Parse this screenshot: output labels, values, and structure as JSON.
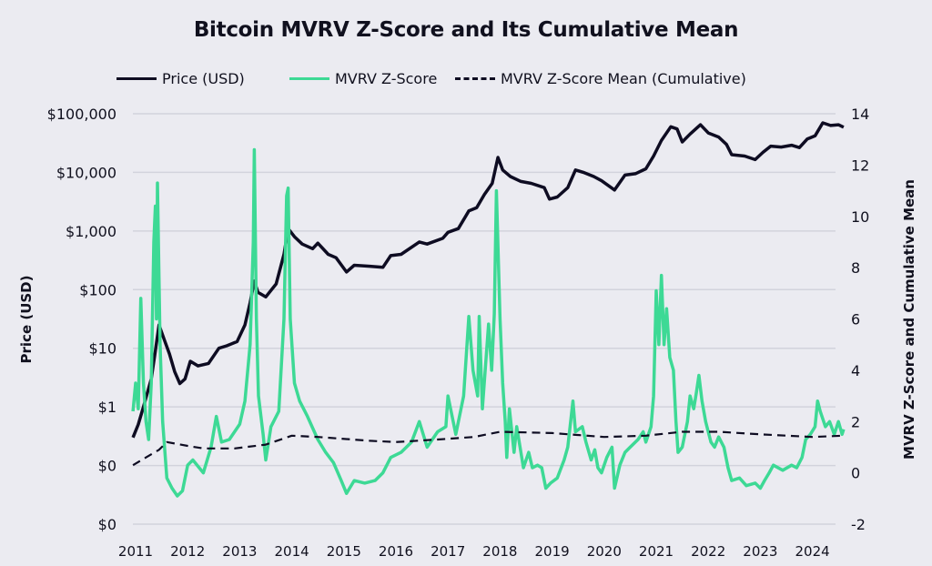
{
  "chart_data": {
    "type": "line",
    "title": "Bitcoin MVRV Z-Score and Its Cumulative Mean",
    "legend_placement": "top",
    "grid": true,
    "x": {
      "ticks": [
        "2011",
        "2012",
        "2013",
        "2014",
        "2015",
        "2016",
        "2017",
        "2018",
        "2019",
        "2020",
        "2021",
        "2022",
        "2023",
        "2024"
      ],
      "range": [
        2010.95,
        2024.6
      ]
    },
    "y_left": {
      "label": "Price (USD)",
      "scale": "log",
      "range": [
        0.01,
        100000
      ],
      "ticks": [
        {
          "v": 100000,
          "t": "$100,000"
        },
        {
          "v": 10000,
          "t": "$10,000"
        },
        {
          "v": 1000,
          "t": "$1,000"
        },
        {
          "v": 100,
          "t": "$100"
        },
        {
          "v": 10,
          "t": "$10"
        },
        {
          "v": 1,
          "t": "$1"
        },
        {
          "v": 0.1,
          "t": "$0"
        },
        {
          "v": 0.01,
          "t": "$0"
        }
      ]
    },
    "y_right": {
      "label": "MVRV Z-Score and Cumulative Mean",
      "range": [
        -2,
        14
      ],
      "ticks": [
        "14",
        "12",
        "10",
        "8",
        "6",
        "4",
        "2",
        "0",
        "-2"
      ]
    },
    "series": [
      {
        "name": "Price (USD)",
        "axis": "left",
        "color": "#0e0c22",
        "style": "solid",
        "points": [
          [
            2010.95,
            0.3
          ],
          [
            2011.05,
            0.5
          ],
          [
            2011.15,
            1
          ],
          [
            2011.3,
            3
          ],
          [
            2011.38,
            9
          ],
          [
            2011.45,
            25
          ],
          [
            2011.55,
            14
          ],
          [
            2011.65,
            8
          ],
          [
            2011.75,
            4
          ],
          [
            2011.85,
            2.5
          ],
          [
            2011.95,
            3
          ],
          [
            2012.05,
            6
          ],
          [
            2012.2,
            5
          ],
          [
            2012.4,
            5.5
          ],
          [
            2012.6,
            10
          ],
          [
            2012.75,
            11
          ],
          [
            2012.95,
            13
          ],
          [
            2013.1,
            25
          ],
          [
            2013.2,
            60
          ],
          [
            2013.28,
            140
          ],
          [
            2013.35,
            90
          ],
          [
            2013.5,
            75
          ],
          [
            2013.7,
            125
          ],
          [
            2013.85,
            400
          ],
          [
            2013.93,
            1100
          ],
          [
            2014.05,
            800
          ],
          [
            2014.2,
            600
          ],
          [
            2014.4,
            500
          ],
          [
            2014.5,
            620
          ],
          [
            2014.7,
            400
          ],
          [
            2014.85,
            350
          ],
          [
            2015.05,
            200
          ],
          [
            2015.2,
            260
          ],
          [
            2015.5,
            250
          ],
          [
            2015.75,
            240
          ],
          [
            2015.9,
            380
          ],
          [
            2016.1,
            400
          ],
          [
            2016.45,
            650
          ],
          [
            2016.6,
            600
          ],
          [
            2016.9,
            750
          ],
          [
            2017.0,
            950
          ],
          [
            2017.2,
            1100
          ],
          [
            2017.4,
            2200
          ],
          [
            2017.55,
            2500
          ],
          [
            2017.7,
            4200
          ],
          [
            2017.85,
            6500
          ],
          [
            2017.96,
            18000
          ],
          [
            2018.05,
            11000
          ],
          [
            2018.2,
            8500
          ],
          [
            2018.4,
            7000
          ],
          [
            2018.6,
            6500
          ],
          [
            2018.85,
            5500
          ],
          [
            2018.95,
            3500
          ],
          [
            2019.1,
            3800
          ],
          [
            2019.3,
            5500
          ],
          [
            2019.45,
            11000
          ],
          [
            2019.6,
            10000
          ],
          [
            2019.8,
            8500
          ],
          [
            2019.95,
            7200
          ],
          [
            2020.2,
            5000
          ],
          [
            2020.4,
            9000
          ],
          [
            2020.6,
            9500
          ],
          [
            2020.8,
            11500
          ],
          [
            2020.95,
            19000
          ],
          [
            2021.1,
            35000
          ],
          [
            2021.28,
            60000
          ],
          [
            2021.4,
            55000
          ],
          [
            2021.5,
            33000
          ],
          [
            2021.65,
            45000
          ],
          [
            2021.85,
            65000
          ],
          [
            2022.0,
            47000
          ],
          [
            2022.2,
            40000
          ],
          [
            2022.35,
            30000
          ],
          [
            2022.45,
            20000
          ],
          [
            2022.7,
            19000
          ],
          [
            2022.9,
            16500
          ],
          [
            2023.05,
            22000
          ],
          [
            2023.2,
            28000
          ],
          [
            2023.4,
            27000
          ],
          [
            2023.6,
            29000
          ],
          [
            2023.75,
            26500
          ],
          [
            2023.9,
            37000
          ],
          [
            2024.05,
            42000
          ],
          [
            2024.2,
            70000
          ],
          [
            2024.35,
            63000
          ],
          [
            2024.5,
            65000
          ],
          [
            2024.6,
            59000
          ]
        ]
      },
      {
        "name": "MVRV Z-Score",
        "axis": "right",
        "color": "#3dd995",
        "style": "solid",
        "points": [
          [
            2010.95,
            2.4
          ],
          [
            2011.0,
            3.5
          ],
          [
            2011.05,
            2.5
          ],
          [
            2011.1,
            6.8
          ],
          [
            2011.15,
            3.5
          ],
          [
            2011.2,
            2.0
          ],
          [
            2011.25,
            1.3
          ],
          [
            2011.3,
            3.5
          ],
          [
            2011.35,
            9.0
          ],
          [
            2011.38,
            10.4
          ],
          [
            2011.4,
            6.0
          ],
          [
            2011.42,
            11.3
          ],
          [
            2011.47,
            5.0
          ],
          [
            2011.52,
            2.0
          ],
          [
            2011.6,
            -0.2
          ],
          [
            2011.7,
            -0.6
          ],
          [
            2011.8,
            -0.9
          ],
          [
            2011.9,
            -0.7
          ],
          [
            2012.0,
            0.3
          ],
          [
            2012.1,
            0.5
          ],
          [
            2012.3,
            0.0
          ],
          [
            2012.45,
            1.0
          ],
          [
            2012.55,
            2.2
          ],
          [
            2012.65,
            1.2
          ],
          [
            2012.8,
            1.3
          ],
          [
            2013.0,
            1.9
          ],
          [
            2013.1,
            2.8
          ],
          [
            2013.2,
            5.0
          ],
          [
            2013.26,
            9.0
          ],
          [
            2013.28,
            12.6
          ],
          [
            2013.32,
            6.0
          ],
          [
            2013.36,
            3.0
          ],
          [
            2013.45,
            1.5
          ],
          [
            2013.5,
            0.5
          ],
          [
            2013.6,
            1.8
          ],
          [
            2013.75,
            2.4
          ],
          [
            2013.85,
            6.0
          ],
          [
            2013.9,
            10.8
          ],
          [
            2013.93,
            11.1
          ],
          [
            2013.97,
            6.0
          ],
          [
            2014.05,
            3.5
          ],
          [
            2014.15,
            2.8
          ],
          [
            2014.3,
            2.2
          ],
          [
            2014.5,
            1.3
          ],
          [
            2014.65,
            0.8
          ],
          [
            2014.8,
            0.4
          ],
          [
            2014.95,
            -0.3
          ],
          [
            2015.05,
            -0.8
          ],
          [
            2015.2,
            -0.3
          ],
          [
            2015.4,
            -0.4
          ],
          [
            2015.6,
            -0.3
          ],
          [
            2015.75,
            0.0
          ],
          [
            2015.9,
            0.6
          ],
          [
            2016.1,
            0.8
          ],
          [
            2016.3,
            1.2
          ],
          [
            2016.45,
            2.0
          ],
          [
            2016.6,
            1.0
          ],
          [
            2016.8,
            1.6
          ],
          [
            2016.96,
            1.8
          ],
          [
            2017.0,
            3.0
          ],
          [
            2017.15,
            1.5
          ],
          [
            2017.3,
            3.0
          ],
          [
            2017.4,
            6.1
          ],
          [
            2017.48,
            4.0
          ],
          [
            2017.57,
            3.0
          ],
          [
            2017.6,
            6.1
          ],
          [
            2017.66,
            2.5
          ],
          [
            2017.78,
            5.8
          ],
          [
            2017.84,
            4.0
          ],
          [
            2017.89,
            6.2
          ],
          [
            2017.93,
            11.0
          ],
          [
            2018.0,
            6.0
          ],
          [
            2018.05,
            3.5
          ],
          [
            2018.1,
            2.0
          ],
          [
            2018.13,
            0.6
          ],
          [
            2018.18,
            2.5
          ],
          [
            2018.27,
            0.8
          ],
          [
            2018.32,
            1.8
          ],
          [
            2018.45,
            0.2
          ],
          [
            2018.55,
            0.8
          ],
          [
            2018.62,
            0.2
          ],
          [
            2018.72,
            0.3
          ],
          [
            2018.8,
            0.2
          ],
          [
            2018.88,
            -0.6
          ],
          [
            2018.97,
            -0.4
          ],
          [
            2019.1,
            -0.2
          ],
          [
            2019.23,
            0.5
          ],
          [
            2019.3,
            1.0
          ],
          [
            2019.4,
            2.8
          ],
          [
            2019.45,
            1.6
          ],
          [
            2019.58,
            1.8
          ],
          [
            2019.65,
            1.2
          ],
          [
            2019.75,
            0.5
          ],
          [
            2019.82,
            0.9
          ],
          [
            2019.88,
            0.2
          ],
          [
            2019.95,
            0.0
          ],
          [
            2020.05,
            0.6
          ],
          [
            2020.15,
            1.0
          ],
          [
            2020.2,
            -0.6
          ],
          [
            2020.3,
            0.3
          ],
          [
            2020.4,
            0.8
          ],
          [
            2020.5,
            1.0
          ],
          [
            2020.65,
            1.3
          ],
          [
            2020.75,
            1.6
          ],
          [
            2020.8,
            1.2
          ],
          [
            2020.9,
            1.8
          ],
          [
            2020.95,
            3.0
          ],
          [
            2021.0,
            7.1
          ],
          [
            2021.05,
            5.0
          ],
          [
            2021.1,
            7.7
          ],
          [
            2021.15,
            5.0
          ],
          [
            2021.2,
            6.4
          ],
          [
            2021.26,
            4.5
          ],
          [
            2021.33,
            4.0
          ],
          [
            2021.38,
            2.0
          ],
          [
            2021.42,
            0.8
          ],
          [
            2021.5,
            1.0
          ],
          [
            2021.6,
            2.0
          ],
          [
            2021.65,
            3.0
          ],
          [
            2021.72,
            2.5
          ],
          [
            2021.77,
            3.1
          ],
          [
            2021.82,
            3.8
          ],
          [
            2021.88,
            2.8
          ],
          [
            2021.95,
            2.0
          ],
          [
            2022.05,
            1.2
          ],
          [
            2022.12,
            1.0
          ],
          [
            2022.2,
            1.4
          ],
          [
            2022.3,
            1.0
          ],
          [
            2022.38,
            0.2
          ],
          [
            2022.45,
            -0.3
          ],
          [
            2022.6,
            -0.2
          ],
          [
            2022.73,
            -0.5
          ],
          [
            2022.9,
            -0.4
          ],
          [
            2023.0,
            -0.6
          ],
          [
            2023.08,
            -0.3
          ],
          [
            2023.17,
            0.0
          ],
          [
            2023.25,
            0.3
          ],
          [
            2023.43,
            0.1
          ],
          [
            2023.6,
            0.3
          ],
          [
            2023.7,
            0.2
          ],
          [
            2023.8,
            0.6
          ],
          [
            2023.87,
            1.3
          ],
          [
            2023.96,
            1.5
          ],
          [
            2024.05,
            1.8
          ],
          [
            2024.1,
            2.8
          ],
          [
            2024.15,
            2.4
          ],
          [
            2024.25,
            1.8
          ],
          [
            2024.33,
            2.0
          ],
          [
            2024.42,
            1.5
          ],
          [
            2024.5,
            2.0
          ],
          [
            2024.57,
            1.5
          ],
          [
            2024.6,
            1.7
          ]
        ]
      },
      {
        "name": "MVRV Z-Score Mean (Cumulative)",
        "axis": "right",
        "color": "#0e0c22",
        "style": "dashed",
        "points": [
          [
            2010.95,
            0.3
          ],
          [
            2011.2,
            0.6
          ],
          [
            2011.45,
            0.9
          ],
          [
            2011.6,
            1.2
          ],
          [
            2012.0,
            1.05
          ],
          [
            2012.3,
            0.95
          ],
          [
            2012.9,
            0.95
          ],
          [
            2013.5,
            1.1
          ],
          [
            2014.0,
            1.45
          ],
          [
            2014.5,
            1.4
          ],
          [
            2015.5,
            1.25
          ],
          [
            2016.0,
            1.2
          ],
          [
            2016.8,
            1.3
          ],
          [
            2017.5,
            1.4
          ],
          [
            2018.0,
            1.6
          ],
          [
            2019.0,
            1.55
          ],
          [
            2020.0,
            1.4
          ],
          [
            2020.8,
            1.45
          ],
          [
            2021.5,
            1.6
          ],
          [
            2022.2,
            1.6
          ],
          [
            2023.0,
            1.5
          ],
          [
            2024.0,
            1.4
          ],
          [
            2024.6,
            1.45
          ]
        ]
      }
    ]
  }
}
